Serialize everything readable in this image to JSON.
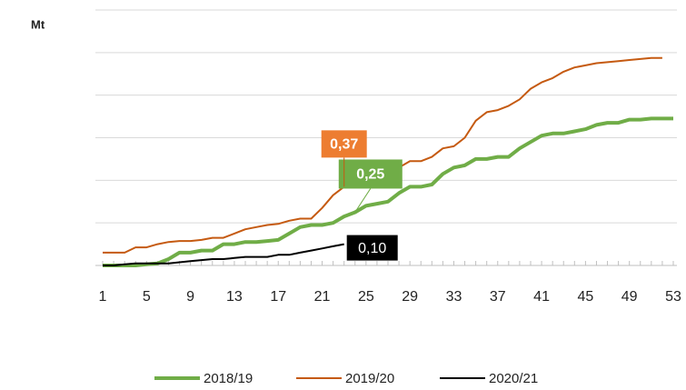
{
  "chart_data": {
    "type": "line",
    "y_axis_label": "Mt",
    "x": [
      1,
      2,
      3,
      4,
      5,
      6,
      7,
      8,
      9,
      10,
      11,
      12,
      13,
      14,
      15,
      16,
      17,
      18,
      19,
      20,
      21,
      22,
      23,
      24,
      25,
      26,
      27,
      28,
      29,
      30,
      31,
      32,
      33,
      34,
      35,
      36,
      37,
      38,
      39,
      40,
      41,
      42,
      43,
      44,
      45,
      46,
      47,
      48,
      49,
      50,
      51,
      52,
      53
    ],
    "xlim": [
      1,
      53
    ],
    "xticks": [
      1,
      5,
      9,
      13,
      17,
      21,
      25,
      29,
      33,
      37,
      41,
      45,
      49,
      53
    ],
    "ylim": [
      0,
      1.2
    ],
    "yticks": [
      0,
      0.2,
      0.4,
      0.6,
      0.8,
      1,
      1.2
    ],
    "grid": true,
    "legend": "bottom",
    "series": [
      {
        "name": "2018/19",
        "color": "#70ad47",
        "values": [
          0,
          0,
          0,
          0,
          0.005,
          0.01,
          0.03,
          0.06,
          0.06,
          0.07,
          0.07,
          0.1,
          0.1,
          0.11,
          0.11,
          0.115,
          0.12,
          0.15,
          0.18,
          0.19,
          0.19,
          0.2,
          0.23,
          0.25,
          0.28,
          0.29,
          0.3,
          0.34,
          0.37,
          0.37,
          0.38,
          0.43,
          0.46,
          0.47,
          0.5,
          0.5,
          0.51,
          0.51,
          0.55,
          0.58,
          0.61,
          0.62,
          0.62,
          0.63,
          0.64,
          0.66,
          0.67,
          0.67,
          0.685,
          0.685,
          0.69,
          0.69,
          0.69
        ],
        "value_labels": [
          null,
          null,
          null,
          null,
          null,
          null,
          null,
          null,
          null,
          null,
          null,
          null,
          null,
          null,
          null,
          null,
          null,
          null,
          null,
          null,
          null,
          null,
          null,
          "0,25",
          null,
          null,
          null,
          null,
          null,
          null,
          null,
          null,
          null,
          null,
          null,
          null,
          null,
          null,
          null,
          null,
          null,
          null,
          null,
          null,
          null,
          null,
          null,
          null,
          null,
          null,
          null,
          null,
          null
        ]
      },
      {
        "name": "2019/20",
        "color": "#c55a11",
        "values": [
          0.06,
          0.06,
          0.06,
          0.085,
          0.085,
          0.1,
          0.11,
          0.115,
          0.115,
          0.12,
          0.13,
          0.13,
          0.15,
          0.17,
          0.18,
          0.19,
          0.195,
          0.21,
          0.22,
          0.22,
          0.27,
          0.33,
          0.37,
          0.39,
          0.41,
          0.43,
          0.46,
          0.46,
          0.49,
          0.49,
          0.51,
          0.55,
          0.56,
          0.6,
          0.68,
          0.72,
          0.73,
          0.75,
          0.78,
          0.83,
          0.86,
          0.88,
          0.91,
          0.93,
          0.94,
          0.95,
          0.955,
          0.96,
          0.965,
          0.97,
          0.975,
          0.975,
          null
        ],
        "value_labels": [
          null,
          null,
          null,
          null,
          null,
          null,
          null,
          null,
          null,
          null,
          null,
          null,
          null,
          null,
          null,
          null,
          null,
          null,
          null,
          null,
          null,
          null,
          "0,37",
          null,
          null,
          null,
          null,
          null,
          null,
          null,
          null,
          null,
          null,
          null,
          null,
          null,
          null,
          null,
          null,
          null,
          null,
          null,
          null,
          null,
          null,
          null,
          null,
          null,
          null,
          null,
          null,
          null,
          null
        ]
      },
      {
        "name": "2020/21",
        "color": "#000000",
        "values": [
          0,
          0,
          0.005,
          0.01,
          0.01,
          0.01,
          0.01,
          0.015,
          0.02,
          0.025,
          0.03,
          0.03,
          0.035,
          0.04,
          0.04,
          0.04,
          0.05,
          0.05,
          0.06,
          0.07,
          0.08,
          0.09,
          0.1,
          null,
          null,
          null,
          null,
          null,
          null,
          null,
          null,
          null,
          null,
          null,
          null,
          null,
          null,
          null,
          null,
          null,
          null,
          null,
          null,
          null,
          null,
          null,
          null,
          null,
          null,
          null,
          null,
          null,
          null
        ],
        "value_labels": [
          null,
          null,
          null,
          null,
          null,
          null,
          null,
          null,
          null,
          null,
          null,
          null,
          null,
          null,
          null,
          null,
          null,
          null,
          null,
          null,
          null,
          null,
          "0,10",
          null,
          null,
          null,
          null,
          null,
          null,
          null,
          null,
          null,
          null,
          null,
          null,
          null,
          null,
          null,
          null,
          null,
          null,
          null,
          null,
          null,
          null,
          null,
          null,
          null,
          null,
          null,
          null,
          null,
          null
        ]
      }
    ]
  }
}
